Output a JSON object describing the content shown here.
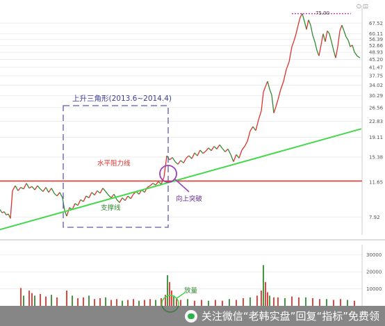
{
  "chart_data": {
    "type": "line",
    "price_axis": {
      "scale": "log",
      "ylim": [
        6.5,
        82
      ],
      "ticks": [
        "67.52",
        "60.11",
        "56.39",
        "52.66",
        "48.93",
        "45.20",
        "41.47",
        "37.75",
        "34.02",
        "30.29",
        "26.56",
        "22.83",
        "19.11",
        "15.38",
        "11.65",
        "7.92"
      ]
    },
    "volume_axis": {
      "ylim": [
        0,
        36000
      ],
      "ticks": [
        "30000",
        "20000",
        "10000"
      ]
    },
    "price_series": {
      "points": [
        [
          0,
          8.6
        ],
        [
          3,
          8.3
        ],
        [
          6,
          8.4
        ],
        [
          9,
          8.1
        ],
        [
          12,
          8.2
        ],
        [
          15,
          7.8
        ],
        [
          18,
          10.6
        ],
        [
          22,
          11.2
        ],
        [
          26,
          10.6
        ],
        [
          30,
          11.0
        ],
        [
          34,
          10.8
        ],
        [
          38,
          11.5
        ],
        [
          42,
          10.9
        ],
        [
          46,
          11.1
        ],
        [
          50,
          10.7
        ],
        [
          54,
          11.2
        ],
        [
          58,
          10.8
        ],
        [
          62,
          10.5
        ],
        [
          66,
          11.0
        ],
        [
          70,
          10.4
        ],
        [
          74,
          10.9
        ],
        [
          78,
          10.3
        ],
        [
          82,
          10.0
        ],
        [
          86,
          10.4
        ],
        [
          90,
          9.8
        ],
        [
          93,
          8.5
        ],
        [
          96,
          8.0
        ],
        [
          100,
          8.8
        ],
        [
          104,
          8.6
        ],
        [
          108,
          9.2
        ],
        [
          112,
          9.0
        ],
        [
          116,
          9.6
        ],
        [
          120,
          9.4
        ],
        [
          124,
          10.0
        ],
        [
          128,
          9.8
        ],
        [
          132,
          10.4
        ],
        [
          136,
          10.1
        ],
        [
          140,
          10.6
        ],
        [
          144,
          10.3
        ],
        [
          148,
          10.9
        ],
        [
          152,
          10.5
        ],
        [
          156,
          10.1
        ],
        [
          160,
          9.8
        ],
        [
          164,
          10.2
        ],
        [
          168,
          9.6
        ],
        [
          172,
          9.3
        ],
        [
          176,
          9.8
        ],
        [
          180,
          9.5
        ],
        [
          184,
          10.0
        ],
        [
          188,
          9.7
        ],
        [
          192,
          10.2
        ],
        [
          196,
          10.5
        ],
        [
          200,
          10.2
        ],
        [
          204,
          10.7
        ],
        [
          208,
          10.4
        ],
        [
          212,
          11.0
        ],
        [
          216,
          11.2
        ],
        [
          220,
          11.5
        ],
        [
          224,
          11.3
        ],
        [
          228,
          11.7
        ],
        [
          232,
          11.4
        ],
        [
          236,
          12.3
        ],
        [
          240,
          15.6
        ],
        [
          244,
          14.9
        ],
        [
          248,
          15.3
        ],
        [
          252,
          14.6
        ],
        [
          256,
          14.2
        ],
        [
          260,
          14.8
        ],
        [
          264,
          14.4
        ],
        [
          268,
          15.2
        ],
        [
          272,
          15.6
        ],
        [
          276,
          15.1
        ],
        [
          280,
          16.1
        ],
        [
          284,
          15.6
        ],
        [
          288,
          16.6
        ],
        [
          292,
          16.0
        ],
        [
          296,
          16.4
        ],
        [
          300,
          17.0
        ],
        [
          304,
          16.5
        ],
        [
          308,
          17.3
        ],
        [
          312,
          16.8
        ],
        [
          316,
          17.6
        ],
        [
          320,
          16.9
        ],
        [
          324,
          16.3
        ],
        [
          328,
          16.8
        ],
        [
          332,
          15.8
        ],
        [
          336,
          14.6
        ],
        [
          340,
          15.8
        ],
        [
          344,
          15.2
        ],
        [
          348,
          16.6
        ],
        [
          352,
          17.3
        ],
        [
          356,
          18.3
        ],
        [
          360,
          20.5
        ],
        [
          364,
          21.5
        ],
        [
          368,
          20.6
        ],
        [
          372,
          23.2
        ],
        [
          376,
          25.6
        ],
        [
          379,
          31.5
        ],
        [
          382,
          33.5
        ],
        [
          385,
          35.5
        ],
        [
          388,
          32.5
        ],
        [
          391,
          30.5
        ],
        [
          394,
          25.0
        ],
        [
          397,
          26.8
        ],
        [
          400,
          29.0
        ],
        [
          404,
          32.5
        ],
        [
          408,
          35.5
        ],
        [
          412,
          40.5
        ],
        [
          416,
          44.0
        ],
        [
          420,
          52.0
        ],
        [
          423,
          55.5
        ],
        [
          426,
          60.0
        ],
        [
          429,
          66.0
        ],
        [
          432,
          72.0
        ],
        [
          435,
          75.0
        ],
        [
          438,
          69.0
        ],
        [
          441,
          63.0
        ],
        [
          444,
          70.0
        ],
        [
          447,
          66.0
        ],
        [
          450,
          59.0
        ],
        [
          453,
          55.0
        ],
        [
          456,
          50.0
        ],
        [
          459,
          47.0
        ],
        [
          462,
          53.0
        ],
        [
          465,
          60.0
        ],
        [
          468,
          55.0
        ],
        [
          471,
          62.0
        ],
        [
          474,
          60.0
        ],
        [
          477,
          55.0
        ],
        [
          480,
          50.0
        ],
        [
          483,
          46.0
        ],
        [
          486,
          52.0
        ],
        [
          489,
          62.0
        ],
        [
          492,
          66.0
        ],
        [
          495,
          62.0
        ],
        [
          498,
          58.0
        ],
        [
          501,
          56.0
        ],
        [
          504,
          52.0
        ],
        [
          507,
          53.0
        ],
        [
          510,
          49.0
        ],
        [
          514,
          47.0
        ],
        [
          518,
          46.0
        ]
      ]
    },
    "volume_series": {
      "bars": [
        [
          30,
          10500
        ],
        [
          34,
          6000
        ],
        [
          42,
          9000
        ],
        [
          46,
          7500
        ],
        [
          50,
          6000
        ],
        [
          58,
          7000
        ],
        [
          66,
          5500
        ],
        [
          74,
          6500
        ],
        [
          82,
          5000
        ],
        [
          96,
          9000
        ],
        [
          104,
          6000
        ],
        [
          112,
          4500
        ],
        [
          120,
          5000
        ],
        [
          128,
          6000
        ],
        [
          136,
          4000
        ],
        [
          144,
          4500
        ],
        [
          152,
          5000
        ],
        [
          160,
          3500
        ],
        [
          168,
          4000
        ],
        [
          176,
          3000
        ],
        [
          184,
          3500
        ],
        [
          192,
          4000
        ],
        [
          200,
          3000
        ],
        [
          208,
          3500
        ],
        [
          216,
          4000
        ],
        [
          224,
          3500
        ],
        [
          232,
          4500
        ],
        [
          238,
          6500
        ],
        [
          241,
          18000
        ],
        [
          244,
          14000
        ],
        [
          247,
          9000
        ],
        [
          250,
          6000
        ],
        [
          254,
          4500
        ],
        [
          260,
          3500
        ],
        [
          270,
          4000
        ],
        [
          280,
          3000
        ],
        [
          290,
          3500
        ],
        [
          300,
          3000
        ],
        [
          310,
          3500
        ],
        [
          320,
          3000
        ],
        [
          330,
          4000
        ],
        [
          340,
          3500
        ],
        [
          350,
          4500
        ],
        [
          360,
          5000
        ],
        [
          370,
          6000
        ],
        [
          376,
          9000
        ],
        [
          379,
          24000
        ],
        [
          382,
          14000
        ],
        [
          385,
          8000
        ],
        [
          388,
          6000
        ],
        [
          394,
          5000
        ],
        [
          400,
          5000
        ],
        [
          410,
          4500
        ],
        [
          420,
          5500
        ],
        [
          430,
          5000
        ],
        [
          440,
          5000
        ],
        [
          450,
          4500
        ],
        [
          460,
          4000
        ],
        [
          470,
          4000
        ],
        [
          480,
          3500
        ],
        [
          490,
          4000
        ],
        [
          500,
          3500
        ],
        [
          510,
          3000
        ]
      ]
    },
    "annotations": {
      "triangle_label": "上升三角形(2013.6~2014.4)",
      "resistance_label": "水平阻力线",
      "support_label": "支撑线",
      "breakout_label": "向上突破",
      "volume_label": "放量",
      "peak_label": "75.00"
    },
    "resistance_level": 11.8,
    "support_line": {
      "start": [
        0,
        6.9
      ],
      "end": [
        520,
        21.0
      ]
    },
    "colors": {
      "up": "#e0302a",
      "down": "#2f8a2f",
      "resistance": "#e0302a",
      "support": "#44d84a",
      "box": "#5a5aaa",
      "circle": "#9b40b8",
      "triangle_text": "#3a3a9a",
      "peak_line": "#c040c0"
    }
  },
  "footer": {
    "text": "关注微信“老韩实盘”回复“指标”免费领"
  },
  "corner_label": "○ ◫"
}
